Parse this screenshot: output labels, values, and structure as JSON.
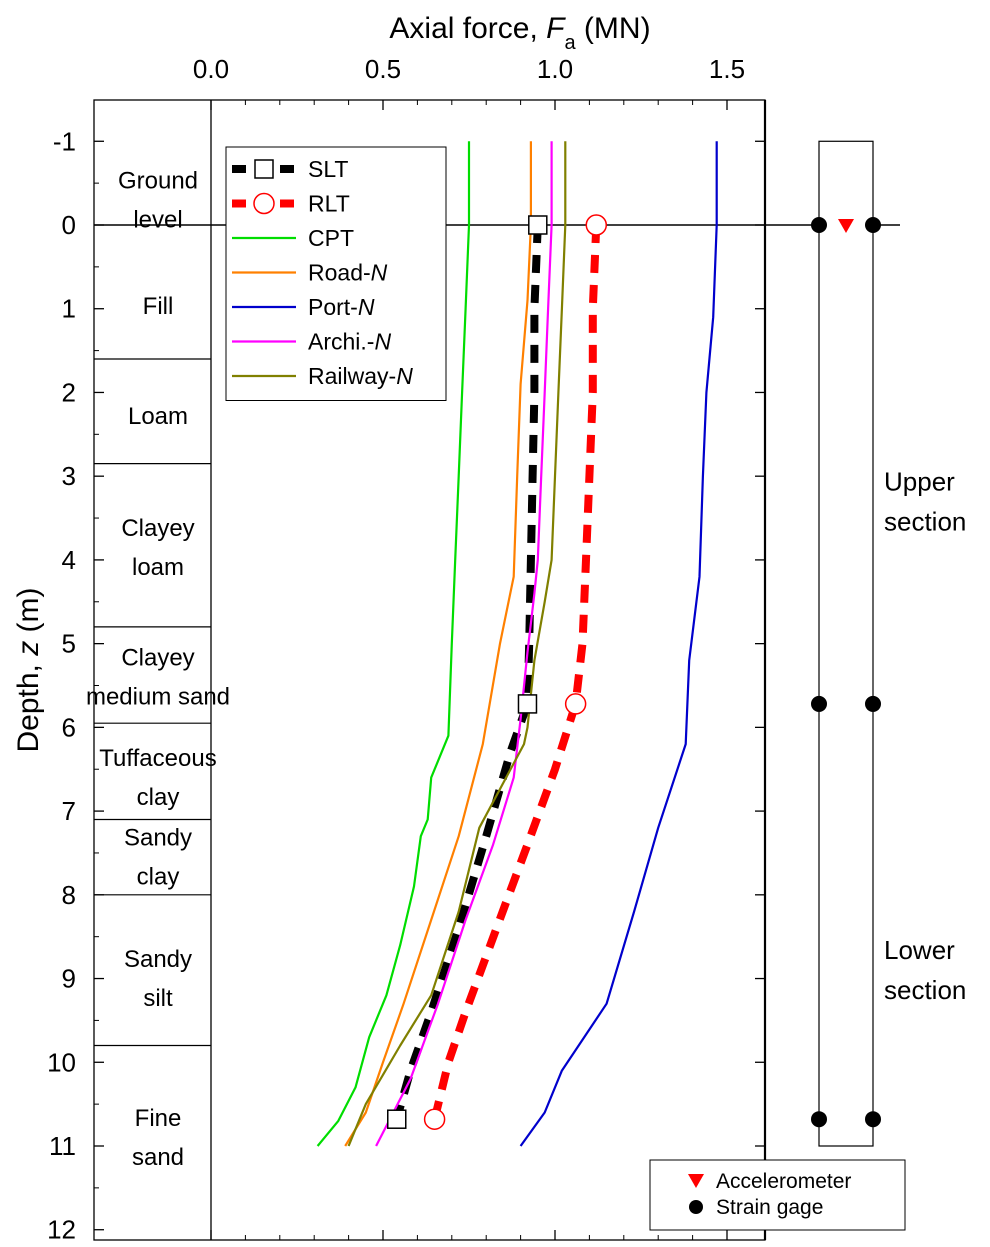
{
  "chart_data": {
    "type": "line",
    "xlabel": {
      "main": "Axial force, ",
      "var": "F",
      "sub": "a",
      "unit": " (MN)"
    },
    "ylabel": {
      "main": "Depth, ",
      "var": "z",
      "unit": " (m)"
    },
    "xlim": [
      -0.33,
      1.5
    ],
    "ylim": [
      -1.5,
      12
    ],
    "x_ticks": [
      0.0,
      0.5,
      1.0,
      1.5
    ],
    "x_tick_labels": [
      "0.0",
      "0.5",
      "1.0",
      "1.5"
    ],
    "y_ticks": [
      -1,
      0,
      1,
      2,
      3,
      4,
      5,
      6,
      7,
      8,
      9,
      10,
      11,
      12
    ],
    "y_tick_labels": [
      "-1",
      "0",
      "1",
      "2",
      "3",
      "4",
      "5",
      "6",
      "7",
      "8",
      "9",
      "10",
      "11",
      "12"
    ],
    "ground_level_z": 0,
    "soil_boundaries": [
      1.6,
      2.85,
      4.8,
      5.95,
      7.1,
      8.0,
      9.8
    ],
    "soil_layers": [
      {
        "lines": [
          "Ground",
          "level"
        ],
        "z": -0.3
      },
      {
        "lines": [
          "Fill"
        ],
        "z": 0.97
      },
      {
        "lines": [
          "Loam"
        ],
        "z": 2.28
      },
      {
        "lines": [
          "Clayey",
          "loam"
        ],
        "z": 3.85
      },
      {
        "lines": [
          "Clayey",
          "medium sand"
        ],
        "z": 5.4
      },
      {
        "lines": [
          "Tuffaceous",
          "clay"
        ],
        "z": 6.6
      },
      {
        "lines": [
          "Sandy",
          "clay"
        ],
        "z": 7.55
      },
      {
        "lines": [
          "Sandy",
          "silt"
        ],
        "z": 9.0
      },
      {
        "lines": [
          "Fine",
          "sand"
        ],
        "z": 10.9
      }
    ],
    "series": [
      {
        "name": "SLT",
        "color": "#000000",
        "style": "dashed-thick",
        "marker": "square",
        "marker_points": [
          [
            0.95,
            0.0
          ],
          [
            0.92,
            5.72
          ],
          [
            0.54,
            10.68
          ]
        ],
        "points": [
          [
            0.95,
            0.0
          ],
          [
            0.94,
            1.0
          ],
          [
            0.94,
            2.0
          ],
          [
            0.935,
            3.0
          ],
          [
            0.93,
            4.0
          ],
          [
            0.925,
            5.0
          ],
          [
            0.92,
            5.72
          ],
          [
            0.87,
            6.3
          ],
          [
            0.8,
            7.3
          ],
          [
            0.72,
            8.4
          ],
          [
            0.64,
            9.4
          ],
          [
            0.58,
            10.1
          ],
          [
            0.54,
            10.68
          ]
        ]
      },
      {
        "name": "RLT",
        "color": "#ff0000",
        "style": "dashed-thick",
        "marker": "circle",
        "marker_points": [
          [
            1.12,
            0.0
          ],
          [
            1.06,
            5.72
          ],
          [
            0.65,
            10.68
          ]
        ],
        "points": [
          [
            1.12,
            0.0
          ],
          [
            1.11,
            1.0
          ],
          [
            1.11,
            2.0
          ],
          [
            1.1,
            3.0
          ],
          [
            1.09,
            4.0
          ],
          [
            1.08,
            5.0
          ],
          [
            1.06,
            5.72
          ],
          [
            1.0,
            6.5
          ],
          [
            0.92,
            7.4
          ],
          [
            0.83,
            8.4
          ],
          [
            0.74,
            9.4
          ],
          [
            0.69,
            10.0
          ],
          [
            0.65,
            10.68
          ]
        ]
      },
      {
        "name": "CPT",
        "color": "#00dd00",
        "style": "solid",
        "points": [
          [
            0.75,
            -1.0
          ],
          [
            0.75,
            0.0
          ],
          [
            0.74,
            1.0
          ],
          [
            0.73,
            2.0
          ],
          [
            0.72,
            3.0
          ],
          [
            0.71,
            4.0
          ],
          [
            0.7,
            5.0
          ],
          [
            0.69,
            6.1
          ],
          [
            0.64,
            6.6
          ],
          [
            0.63,
            7.1
          ],
          [
            0.61,
            7.3
          ],
          [
            0.59,
            7.9
          ],
          [
            0.55,
            8.6
          ],
          [
            0.51,
            9.2
          ],
          [
            0.46,
            9.7
          ],
          [
            0.42,
            10.3
          ],
          [
            0.37,
            10.7
          ],
          [
            0.31,
            11.0
          ]
        ]
      },
      {
        "name": "Road-N",
        "color": "#ff8000",
        "style": "solid",
        "points": [
          [
            0.93,
            -1.0
          ],
          [
            0.93,
            0.0
          ],
          [
            0.92,
            0.9
          ],
          [
            0.9,
            1.9
          ],
          [
            0.89,
            3.0
          ],
          [
            0.88,
            4.2
          ],
          [
            0.84,
            5.0
          ],
          [
            0.79,
            6.2
          ],
          [
            0.72,
            7.3
          ],
          [
            0.64,
            8.3
          ],
          [
            0.56,
            9.3
          ],
          [
            0.5,
            10.0
          ],
          [
            0.45,
            10.6
          ],
          [
            0.39,
            11.0
          ]
        ]
      },
      {
        "name": "Port-N",
        "color": "#0000cc",
        "style": "solid",
        "points": [
          [
            1.47,
            -1.0
          ],
          [
            1.47,
            0.0
          ],
          [
            1.46,
            1.1
          ],
          [
            1.44,
            2.0
          ],
          [
            1.43,
            3.0
          ],
          [
            1.42,
            4.2
          ],
          [
            1.39,
            5.2
          ],
          [
            1.38,
            6.2
          ],
          [
            1.3,
            7.2
          ],
          [
            1.23,
            8.2
          ],
          [
            1.15,
            9.3
          ],
          [
            1.02,
            10.1
          ],
          [
            0.97,
            10.6
          ],
          [
            0.9,
            11.0
          ]
        ]
      },
      {
        "name": "Archi.-N",
        "color": "#ff00ff",
        "style": "solid",
        "points": [
          [
            0.99,
            -1.0
          ],
          [
            0.99,
            0.0
          ],
          [
            0.98,
            1.0
          ],
          [
            0.97,
            2.0
          ],
          [
            0.96,
            3.0
          ],
          [
            0.95,
            4.0
          ],
          [
            0.94,
            4.4
          ],
          [
            0.92,
            5.1
          ],
          [
            0.9,
            5.9
          ],
          [
            0.88,
            6.6
          ],
          [
            0.82,
            7.4
          ],
          [
            0.74,
            8.3
          ],
          [
            0.66,
            9.3
          ],
          [
            0.58,
            10.2
          ],
          [
            0.53,
            10.6
          ],
          [
            0.48,
            11.0
          ]
        ]
      },
      {
        "name": "Railway-N",
        "color": "#808000",
        "style": "solid",
        "points": [
          [
            1.03,
            -1.0
          ],
          [
            1.03,
            0.0
          ],
          [
            1.02,
            1.0
          ],
          [
            1.01,
            2.0
          ],
          [
            1.0,
            3.0
          ],
          [
            0.99,
            4.0
          ],
          [
            0.97,
            4.5
          ],
          [
            0.94,
            5.2
          ],
          [
            0.92,
            6.0
          ],
          [
            0.91,
            6.2
          ],
          [
            0.78,
            7.2
          ],
          [
            0.72,
            8.2
          ],
          [
            0.64,
            9.2
          ],
          [
            0.55,
            9.8
          ],
          [
            0.45,
            10.5
          ],
          [
            0.4,
            11.0
          ]
        ]
      }
    ],
    "pile": {
      "top_z": -1.0,
      "bottom_z": 11.0,
      "strain_gage_z": [
        0.0,
        5.72,
        10.68
      ],
      "accelerometer_z": [
        0.0
      ],
      "section_labels": [
        {
          "lines": [
            "Upper",
            "section"
          ],
          "z": 3.3
        },
        {
          "lines": [
            "Lower",
            "section"
          ],
          "z": 8.9
        }
      ]
    },
    "legend": {
      "placement": "upper-left",
      "entries": [
        "SLT",
        "RLT",
        "CPT",
        "Road-N",
        "Port-N",
        "Archi.-N",
        "Railway-N"
      ]
    },
    "pile_legend": {
      "placement": "bottom-right",
      "entries": [
        "Accelerometer",
        "Strain gage"
      ]
    }
  }
}
